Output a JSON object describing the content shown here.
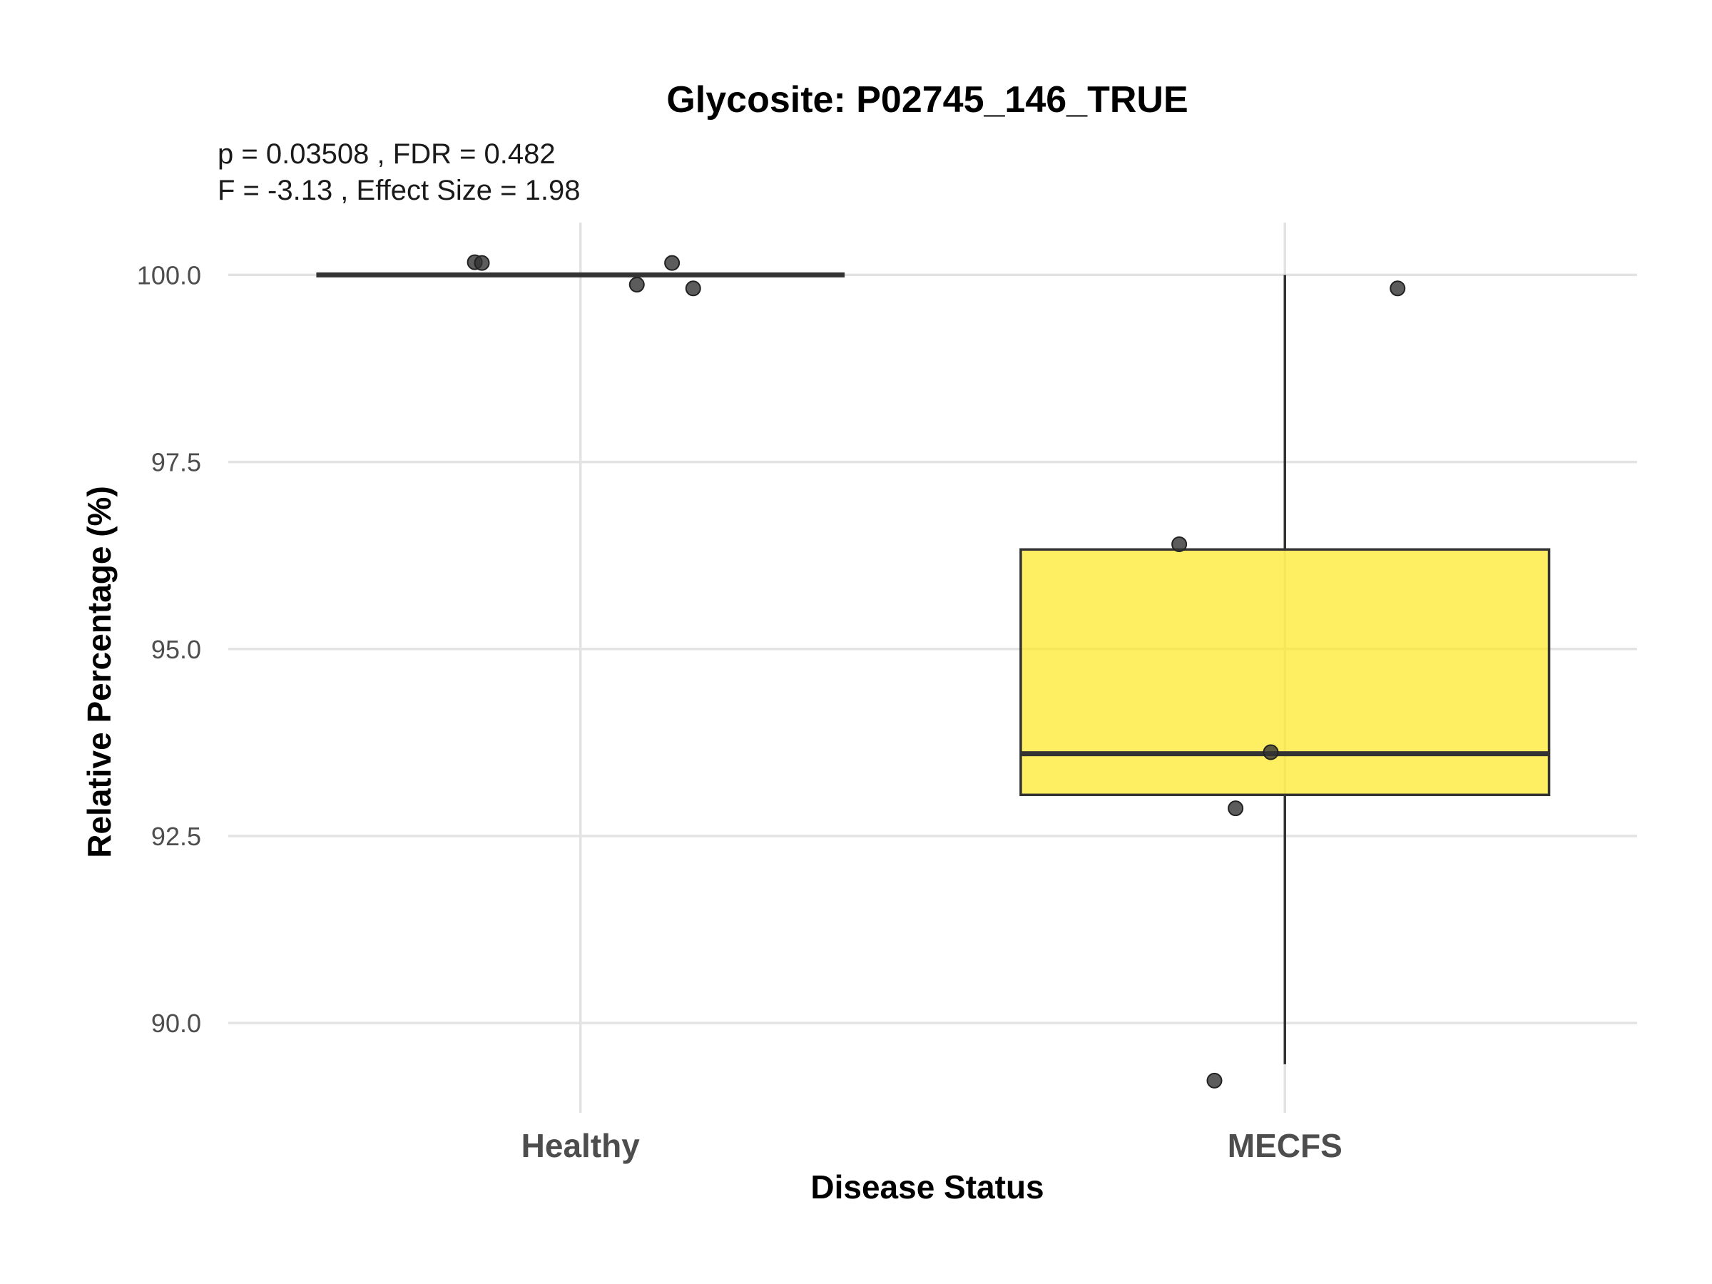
{
  "chart_data": {
    "type": "box",
    "title": "Glycosite: P02745_146_TRUE",
    "subtitle_lines": [
      "p = 0.03508 , FDR = 0.482",
      "F = -3.13 , Effect Size = 1.98"
    ],
    "xlabel": "Disease Status",
    "ylabel": "Relative Percentage (%)",
    "categories": [
      "Healthy",
      "MECFS"
    ],
    "ylim": [
      88.8,
      100.7
    ],
    "yticks": [
      90.0,
      92.5,
      95.0,
      97.5,
      100.0
    ],
    "ytick_labels": [
      "90.0",
      "92.5",
      "95.0",
      "97.5",
      "100.0"
    ],
    "grid": true,
    "boxes": [
      {
        "category": "Healthy",
        "whisker_low": 100.0,
        "q1": 100.0,
        "median": 100.0,
        "q3": 100.0,
        "whisker_high": 100.0,
        "fill": "#fde725"
      },
      {
        "category": "MECFS",
        "whisker_low": 89.45,
        "q1": 93.05,
        "median": 93.6,
        "q3": 96.33,
        "whisker_high": 100.0,
        "fill": "#fde725"
      }
    ],
    "points": [
      {
        "category": "Healthy",
        "y": 100.17,
        "jitter": -0.15
      },
      {
        "category": "Healthy",
        "y": 100.16,
        "jitter": -0.14
      },
      {
        "category": "Healthy",
        "y": 100.16,
        "jitter": 0.13
      },
      {
        "category": "Healthy",
        "y": 99.87,
        "jitter": 0.08
      },
      {
        "category": "Healthy",
        "y": 99.82,
        "jitter": 0.16
      },
      {
        "category": "MECFS",
        "y": 99.82,
        "jitter": 0.16
      },
      {
        "category": "MECFS",
        "y": 96.4,
        "jitter": -0.15
      },
      {
        "category": "MECFS",
        "y": 93.62,
        "jitter": -0.02
      },
      {
        "category": "MECFS",
        "y": 92.87,
        "jitter": -0.07
      },
      {
        "category": "MECFS",
        "y": 89.23,
        "jitter": -0.1
      }
    ],
    "colors": {
      "box_fill": "#fde725",
      "outline": "#333333",
      "point": "#333333",
      "grid": "#e3e3e3"
    }
  }
}
